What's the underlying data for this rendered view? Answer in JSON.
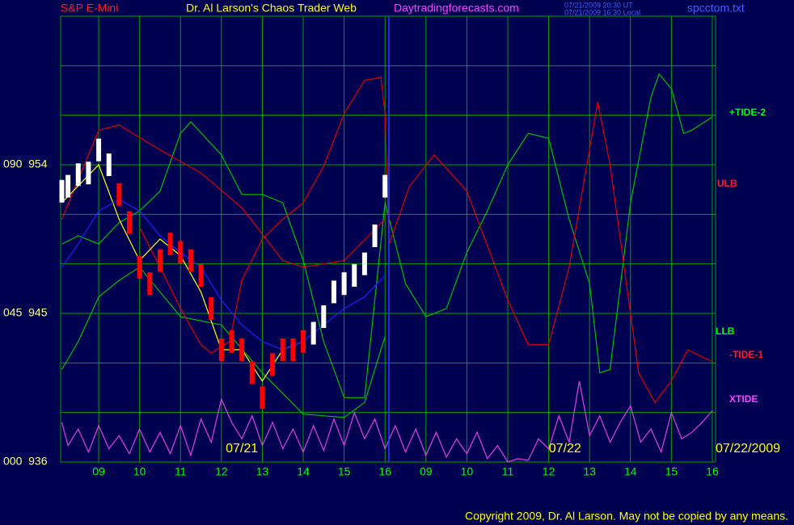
{
  "chart_data": {
    "type": "line",
    "title": "Dr. Al Larson's Chaos Trader Web",
    "symbol": "S&P E-Mini",
    "site": "Daytradingforecasts.com",
    "file": "spcctom.txt",
    "timestamps": [
      "07/21/2009 20:30 UT",
      "07/21/2009 16:30 Local"
    ],
    "copyright": "Copyright 2009, Dr. Al Larson. May not be copied by any means.",
    "date_labels": [
      {
        "x": 3.5,
        "label": "07/21"
      },
      {
        "x": 11.4,
        "label": "07/22"
      }
    ],
    "end_date": "07/22/2009",
    "xlim": [
      -0.93,
      15.08
    ],
    "ylim": [
      936,
      963
    ],
    "xticks": [
      {
        "value": 0,
        "label": "09"
      },
      {
        "value": 1,
        "label": "10"
      },
      {
        "value": 2,
        "label": "11"
      },
      {
        "value": 3,
        "label": "12"
      },
      {
        "value": 4,
        "label": "13"
      },
      {
        "value": 5,
        "label": "14"
      },
      {
        "value": 6,
        "label": "15"
      },
      {
        "value": 7,
        "label": "16"
      },
      {
        "value": 8,
        "label": "09"
      },
      {
        "value": 9,
        "label": "10"
      },
      {
        "value": 10,
        "label": "11"
      },
      {
        "value": 11,
        "label": "12"
      },
      {
        "value": 12,
        "label": "13"
      },
      {
        "value": 13,
        "label": "14"
      },
      {
        "value": 14,
        "label": "15"
      },
      {
        "value": 15,
        "label": "16"
      }
    ],
    "yticks": [
      {
        "value": 954,
        "label": "090  954"
      },
      {
        "value": 945,
        "label": "045  945"
      },
      {
        "value": 936,
        "label": "000  936"
      }
    ],
    "ygrid": [
      936,
      939,
      942,
      945,
      948,
      951,
      954,
      957,
      960,
      963
    ],
    "grid": true,
    "series": [
      {
        "name": "+TIDE-2",
        "color": "#00c000",
        "x": [
          -0.9,
          -0.5,
          0,
          0.5,
          1,
          1.5,
          2,
          2.25,
          3,
          3.5,
          4,
          4.5,
          5,
          5.5,
          6,
          6.5,
          7,
          7.5,
          8,
          8.5,
          9,
          9.5,
          10,
          10.5,
          11,
          11.5,
          12,
          12.25,
          12.5,
          13,
          13.5,
          13.7,
          14,
          14.3,
          14.5,
          15
        ],
        "values": [
          949.2,
          949.7,
          949.2,
          950.5,
          951.2,
          952.4,
          955.9,
          956.6,
          954.6,
          952.2,
          952.2,
          951.7,
          948.2,
          943.3,
          939.9,
          939.9,
          951.7,
          946.8,
          944.8,
          945.3,
          948.7,
          951.2,
          954.0,
          955.9,
          955.6,
          950.7,
          946.8,
          941.4,
          941.6,
          951.7,
          958.1,
          959.5,
          958.6,
          955.9,
          956.1,
          956.9
        ]
      },
      {
        "name": "ULB",
        "color": "#e00000",
        "x": [
          -0.9,
          0,
          0.5,
          1.5,
          2.5,
          3.5,
          4.5,
          5,
          6,
          7
        ],
        "values": [
          950.7,
          956.1,
          956.4,
          954.9,
          953.5,
          951.4,
          948.2,
          947.8,
          948.2,
          950.7
        ]
      },
      {
        "name": "LLB",
        "color": "#00c000",
        "x": [
          -0.9,
          -0.5,
          0,
          0.5,
          1,
          2,
          3,
          4,
          5,
          6,
          6.5,
          7
        ],
        "values": [
          941.6,
          943.3,
          946.0,
          947.0,
          947.8,
          944.8,
          944.3,
          941.4,
          938.9,
          938.7,
          939.6,
          943.6
        ]
      },
      {
        "name": "-TIDE-1",
        "color": "#e00000",
        "x": [
          1,
          1.5,
          2,
          2.5,
          2.75,
          3.2,
          3.5,
          4,
          4.5,
          5,
          5.5,
          6,
          6.5,
          6.9,
          7,
          7.1,
          7.6,
          8.2,
          9,
          10,
          10.5,
          11,
          11.5,
          12.2,
          12.5,
          13.2,
          13.6,
          14,
          14.4,
          14.8,
          15
        ],
        "values": [
          950.2,
          947.8,
          945.3,
          943.1,
          942.6,
          943.3,
          947.0,
          949.5,
          950.7,
          951.7,
          953.9,
          957.1,
          959.1,
          959.3,
          957.1,
          949.2,
          952.7,
          954.6,
          952.4,
          945.8,
          943.1,
          943.1,
          947.8,
          957.8,
          954.0,
          941.4,
          939.6,
          940.9,
          942.8,
          942.3,
          942.1
        ]
      },
      {
        "name": "XTIDE",
        "color": "#e040e0",
        "x": [
          -0.9,
          -0.75,
          -0.5,
          -0.25,
          0,
          0.25,
          0.5,
          0.75,
          1,
          1.25,
          1.5,
          1.75,
          2,
          2.25,
          2.5,
          2.75,
          3,
          3.25,
          3.5,
          3.75,
          4,
          4.25,
          4.5,
          4.75,
          5,
          5.25,
          5.5,
          5.75,
          6,
          6.25,
          6.5,
          6.75,
          7,
          7.25,
          7.5,
          7.75,
          8,
          8.25,
          8.5,
          8.75,
          9,
          9.25,
          9.5,
          9.75,
          10,
          10.25,
          10.5,
          10.75,
          11,
          11.25,
          11.5,
          11.75,
          12,
          12.25,
          12.5,
          12.75,
          13,
          13.25,
          13.5,
          13.75,
          14,
          14.25,
          14.5,
          14.75,
          15
        ],
        "values": [
          938.4,
          937.0,
          938.0,
          936.6,
          938.2,
          936.8,
          937.6,
          936.5,
          938.0,
          936.6,
          937.8,
          936.5,
          938.2,
          936.4,
          938.6,
          937.2,
          939.8,
          938.4,
          937.4,
          938.8,
          937.0,
          938.4,
          936.8,
          938.0,
          936.6,
          938.2,
          936.7,
          938.6,
          937.0,
          939.0,
          937.4,
          938.6,
          936.8,
          938.2,
          936.6,
          938.0,
          936.4,
          937.8,
          936.3,
          937.4,
          936.5,
          937.8,
          936.2,
          937.0,
          936.0,
          936.2,
          936.1,
          937.4,
          936.8,
          938.8,
          937.2,
          940.9,
          937.6,
          938.8,
          937.2,
          938.4,
          939.4,
          937.2,
          938.0,
          936.6,
          939.0,
          937.4,
          937.8,
          938.4,
          939.1
        ]
      },
      {
        "color": "#ffff00",
        "x": [
          -0.9,
          0,
          0.5,
          1,
          1.5,
          2,
          2.5,
          3,
          3.5,
          4,
          4.5,
          5
        ],
        "values": [
          951.7,
          954.0,
          950.7,
          948.2,
          949.5,
          948.5,
          946.3,
          942.8,
          942.8,
          940.9,
          942.8,
          943.3
        ]
      },
      {
        "color": "#2020ff",
        "x": [
          -0.9,
          -0.5,
          0,
          0.5,
          1,
          1.5,
          2,
          2.5,
          3,
          3.5,
          4,
          4.5,
          5,
          5.5,
          6,
          6.5,
          7
        ],
        "values": [
          947.8,
          949.2,
          951.2,
          951.9,
          951.2,
          949.7,
          948.7,
          947.8,
          945.8,
          944.3,
          943.3,
          942.8,
          943.3,
          944.3,
          945.3,
          946.0,
          947.3
        ]
      },
      {
        "style": "bars",
        "x": [
          -0.9,
          -0.75,
          -0.5,
          -0.25,
          0,
          0.25,
          0.5,
          0.75,
          1,
          1.25,
          1.5,
          1.75,
          2,
          2.25,
          2.5,
          2.75,
          3,
          3.25,
          3.5,
          3.75,
          4,
          4.25,
          4.5,
          4.75,
          5,
          5.25,
          5.5,
          5.75,
          6,
          6.25,
          6.5,
          6.75,
          7
        ],
        "values": [
          952.4,
          952.7,
          953.4,
          953.5,
          954.9,
          954.0,
          952.2,
          950.5,
          947.8,
          946.8,
          948.2,
          949.2,
          948.7,
          948.2,
          947.3,
          945.3,
          942.8,
          943.3,
          942.8,
          941.4,
          939.9,
          941.9,
          942.8,
          942.8,
          943.3,
          943.8,
          944.8,
          946.3,
          946.8,
          947.3,
          948.0,
          949.7,
          952.7
        ],
        "colors": [
          "#ffffff",
          "#ffffff",
          "#ffffff",
          "#ffffff",
          "#ffffff",
          "#ffffff",
          "#ff0000",
          "#ff0000",
          "#ff0000",
          "#ff0000",
          "#ff0000",
          "#ff0000",
          "#ff0000",
          "#ff0000",
          "#ff0000",
          "#ff0000",
          "#ff0000",
          "#ff0000",
          "#ff0000",
          "#ff0000",
          "#ff0000",
          "#ff0000",
          "#ff0000",
          "#ff0000",
          "#ff0000",
          "#ffffff",
          "#ffffff",
          "#ffffff",
          "#ffffff",
          "#ffffff",
          "#ffffff",
          "#ffffff",
          "#ffffff"
        ]
      }
    ]
  }
}
